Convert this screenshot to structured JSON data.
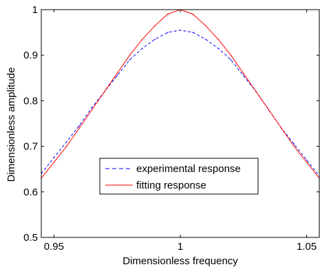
{
  "chart_data": {
    "type": "line",
    "xlabel": "Dimensionless frequency",
    "ylabel": "Dimensionless amplitude",
    "xlim": [
      0.945,
      1.055
    ],
    "ylim": [
      0.5,
      1.0
    ],
    "xticks": [
      0.95,
      1.0,
      1.05
    ],
    "xtick_labels": [
      "0.95",
      "1",
      "1.05"
    ],
    "yticks": [
      0.5,
      0.6,
      0.7,
      0.8,
      0.9,
      1.0
    ],
    "ytick_labels": [
      "0.5",
      "0.6",
      "0.7",
      "0.8",
      "0.9",
      "1"
    ],
    "grid": false,
    "legend_position": "lower-center",
    "series": [
      {
        "name": "experimental response",
        "color": "#0000ff",
        "style": "dashed",
        "x": [
          0.945,
          0.95,
          0.955,
          0.96,
          0.965,
          0.97,
          0.975,
          0.98,
          0.985,
          0.99,
          0.995,
          1.0,
          1.005,
          1.01,
          1.015,
          1.02,
          1.025,
          1.03,
          1.035,
          1.04,
          1.045,
          1.05,
          1.055
        ],
        "y": [
          0.64,
          0.675,
          0.71,
          0.745,
          0.785,
          0.82,
          0.855,
          0.89,
          0.915,
          0.935,
          0.95,
          0.955,
          0.95,
          0.935,
          0.915,
          0.89,
          0.855,
          0.82,
          0.78,
          0.74,
          0.705,
          0.67,
          0.635
        ]
      },
      {
        "name": "fitting response",
        "color": "#ff0000",
        "style": "solid",
        "x": [
          0.945,
          0.95,
          0.955,
          0.96,
          0.965,
          0.97,
          0.975,
          0.98,
          0.985,
          0.99,
          0.995,
          1.0,
          1.005,
          1.01,
          1.015,
          1.02,
          1.025,
          1.03,
          1.035,
          1.04,
          1.045,
          1.05,
          1.055
        ],
        "y": [
          0.63,
          0.665,
          0.7,
          0.74,
          0.78,
          0.82,
          0.86,
          0.9,
          0.935,
          0.965,
          0.99,
          1.0,
          0.99,
          0.965,
          0.935,
          0.9,
          0.86,
          0.82,
          0.78,
          0.74,
          0.7,
          0.665,
          0.63
        ]
      }
    ]
  }
}
